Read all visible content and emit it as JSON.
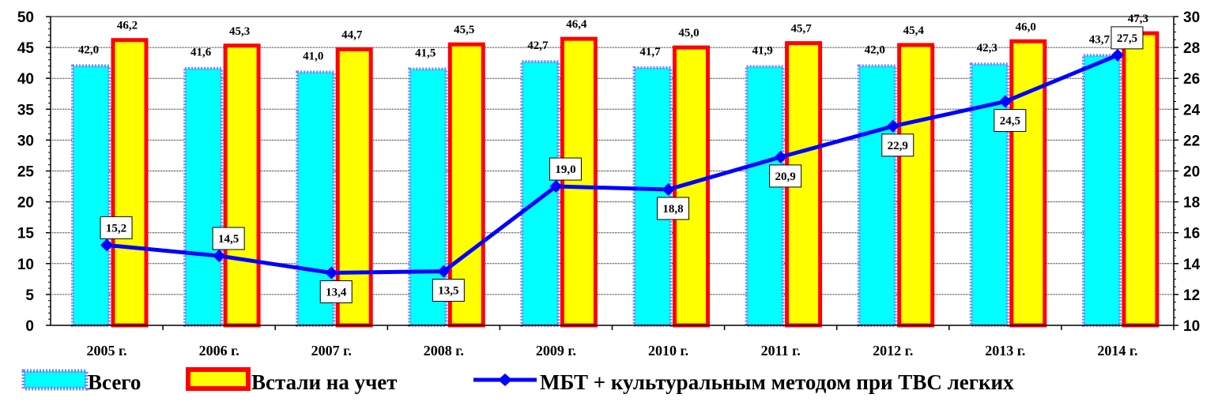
{
  "chart_data": {
    "type": "bar",
    "categories": [
      "2005 г.",
      "2006 г.",
      "2007 г.",
      "2008 г.",
      "2009 г.",
      "2010 г.",
      "2011 г.",
      "2012 г.",
      "2013 г.",
      "2014 г."
    ],
    "series": [
      {
        "name": "Всего",
        "type": "bar",
        "axis": "left",
        "color": "#00ffff",
        "border": "#8080ff",
        "values": [
          42.0,
          41.6,
          41.0,
          41.5,
          42.7,
          41.7,
          41.9,
          42.0,
          42.3,
          43.7
        ],
        "labels": [
          "42,0",
          "41,6",
          "41,0",
          "41,5",
          "42,7",
          "41,7",
          "41,9",
          "42,0",
          "42,3",
          "43,7"
        ]
      },
      {
        "name": "Встали на учет",
        "type": "bar",
        "axis": "left",
        "color": "#ffff00",
        "border": "#ff0000",
        "values": [
          46.2,
          45.3,
          44.7,
          45.5,
          46.4,
          45.0,
          45.7,
          45.4,
          46.0,
          47.3
        ],
        "labels": [
          "46,2",
          "45,3",
          "44,7",
          "45,5",
          "46,4",
          "45,0",
          "45,7",
          "45,4",
          "46,0",
          "47,3"
        ]
      },
      {
        "name": "МБТ + культуральным методом при ТВС легких",
        "type": "line",
        "axis": "right",
        "color": "#0000ff",
        "values": [
          15.2,
          14.5,
          13.4,
          13.5,
          19.0,
          18.8,
          20.9,
          22.9,
          24.5,
          27.5
        ],
        "labels": [
          "15,2",
          "14,5",
          "13,4",
          "13,5",
          "19,0",
          "18,8",
          "20,9",
          "22,9",
          "24,5",
          "27,5"
        ]
      }
    ],
    "y_left": {
      "min": 0,
      "max": 50,
      "step": 5,
      "ticks": [
        "0",
        "5",
        "10",
        "15",
        "20",
        "25",
        "30",
        "35",
        "40",
        "45",
        "50"
      ]
    },
    "y_right": {
      "min": 10,
      "max": 30,
      "step": 2,
      "ticks": [
        "10",
        "12",
        "14",
        "16",
        "18",
        "20",
        "22",
        "24",
        "26",
        "28",
        "30"
      ]
    },
    "grid": true,
    "legend_position": "bottom"
  }
}
